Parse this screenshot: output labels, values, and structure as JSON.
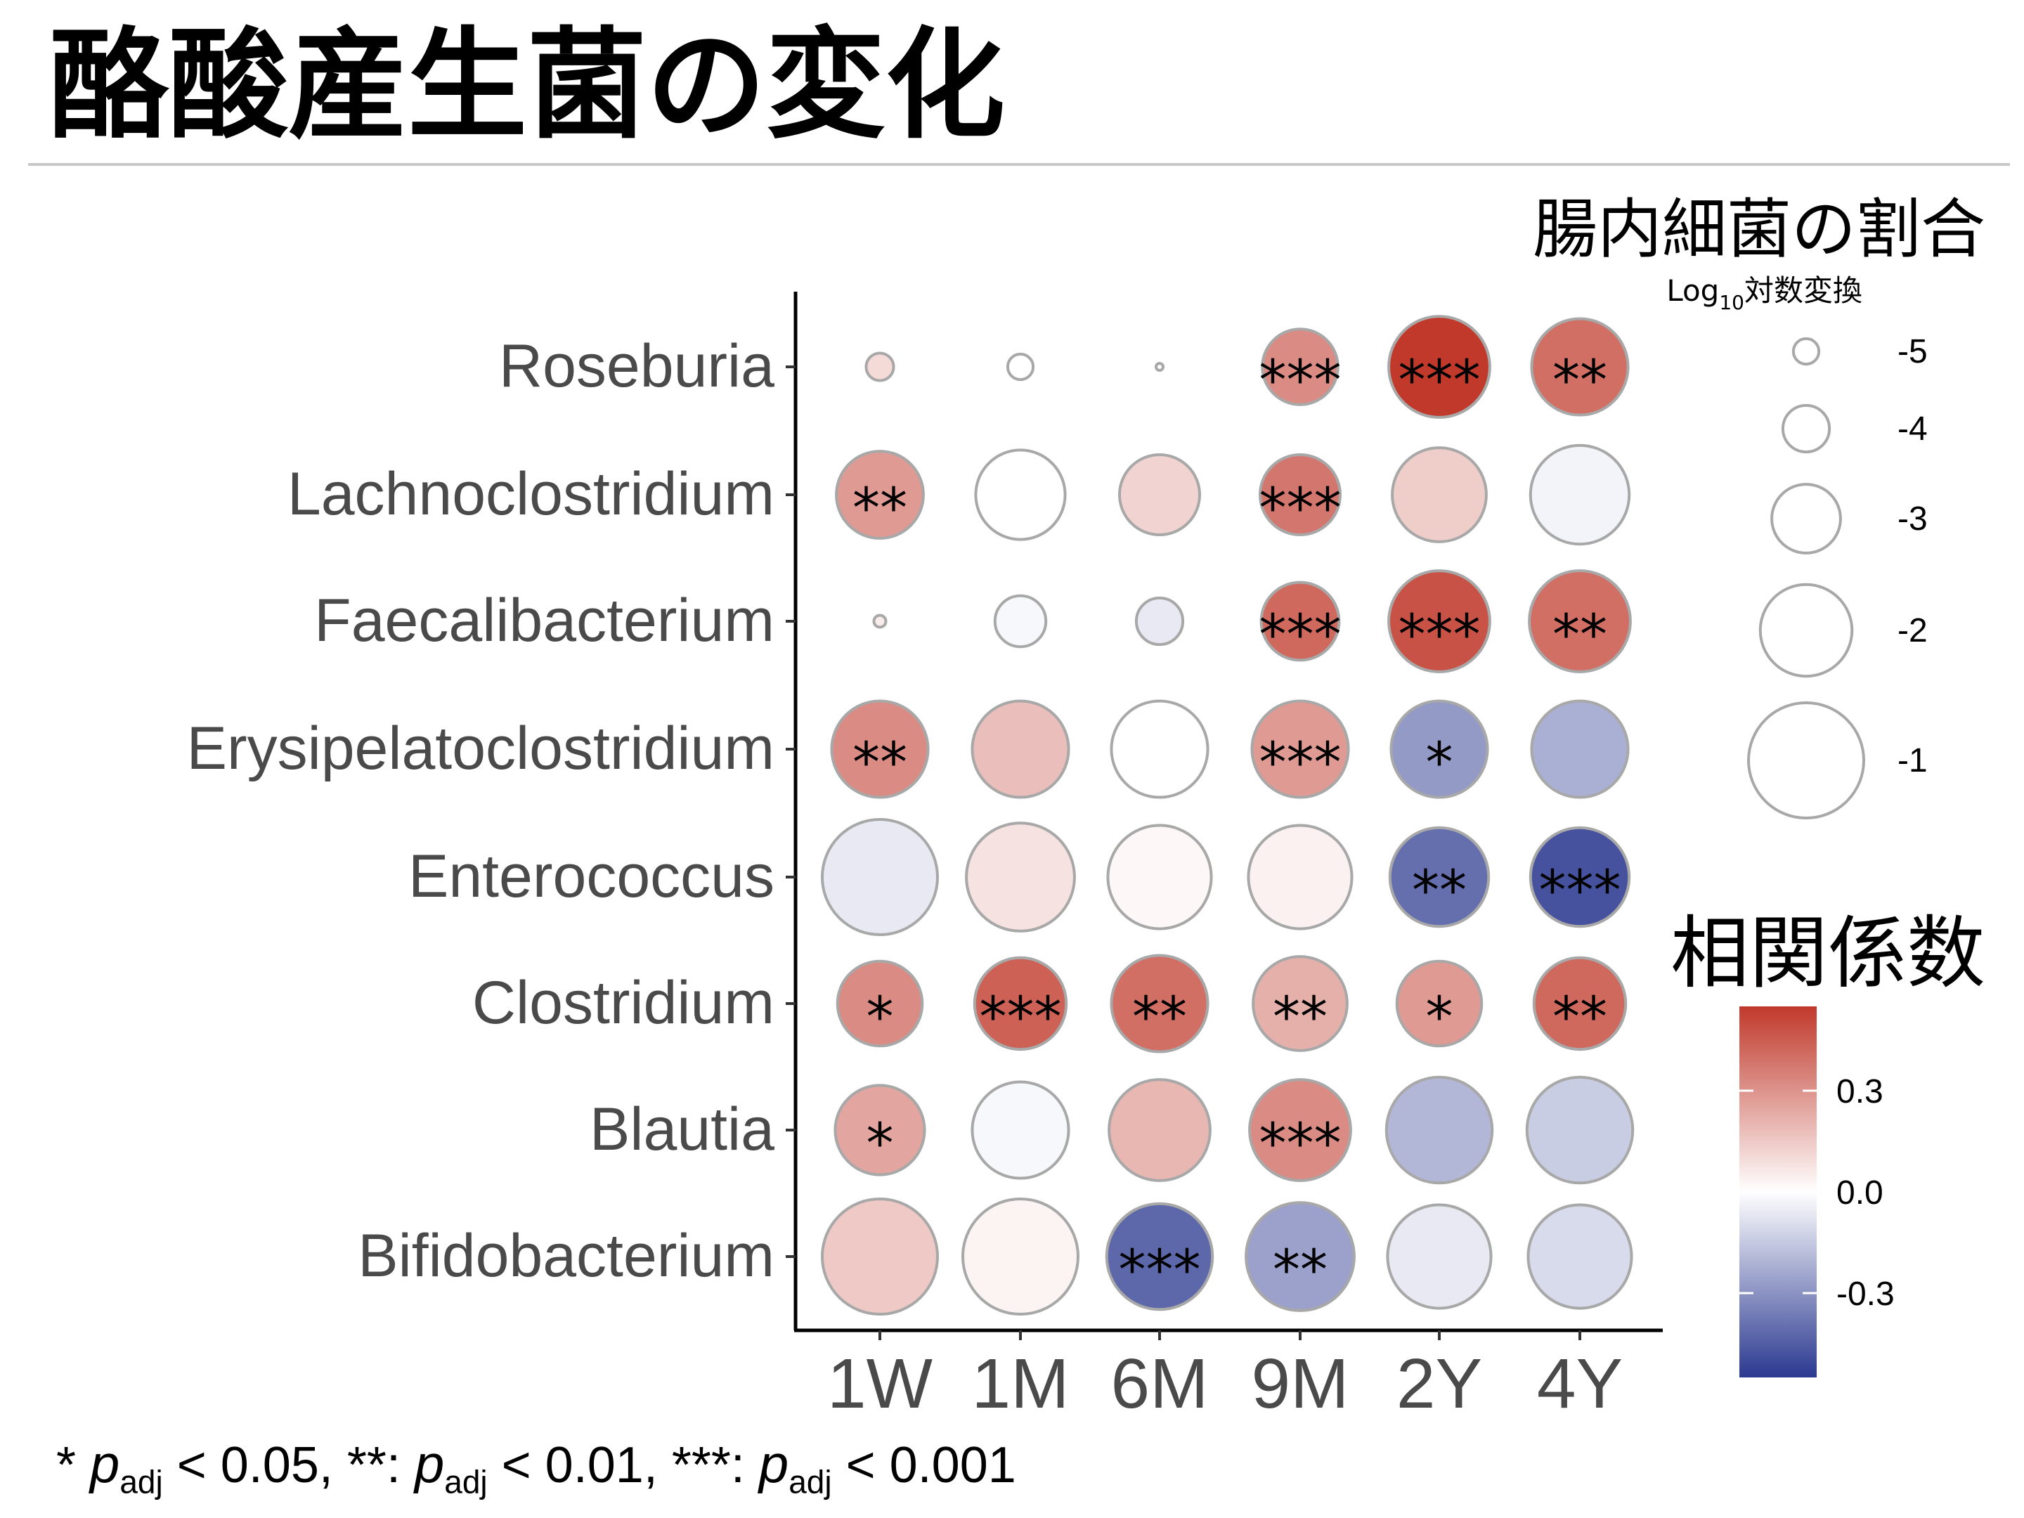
{
  "slide": {
    "title": "酪酸産生菌の変化"
  },
  "footnote": {
    "sig1": "* ",
    "p_symbol": "p",
    "p_sub": "adj",
    "t1": " < 0.05, ",
    "sig2": "**: ",
    "t2": " < 0.01, ",
    "sig3": "***: ",
    "t3": " < 0.001"
  },
  "chart_data": {
    "type": "bubble-heatmap",
    "x_categories": [
      "1W",
      "1M",
      "6M",
      "9M",
      "2Y",
      "4Y"
    ],
    "y_categories": [
      "Roseburia",
      "Lachnoclostridium",
      "Faecalibacterium",
      "Erysipelatoclostridium",
      "Enterococcus",
      "Clostridium",
      "Blautia",
      "Bifidobacterium"
    ],
    "size_legend": {
      "title": "腸内細菌の割合",
      "subtitle_pre": "Log",
      "subtitle_sub": "10",
      "subtitle_post": "対数変換",
      "values": [
        -5,
        -4,
        -3,
        -2,
        -1
      ],
      "labels": [
        "-5",
        "-4",
        "-3",
        "-2",
        "-1"
      ]
    },
    "color_legend": {
      "title": "相関係数",
      "range": [
        -0.55,
        0.55
      ],
      "ticks": [
        0.3,
        0.0,
        -0.3
      ],
      "tick_labels": [
        "0.3",
        "0.0",
        "-0.3"
      ],
      "low_color": "#2b3990",
      "mid_color": "#ffffff",
      "high_color": "#c0392b"
    },
    "cells": [
      {
        "row": "Roseburia",
        "col": "1W",
        "size": -4.9,
        "corr": 0.1,
        "sig": ""
      },
      {
        "row": "Roseburia",
        "col": "1M",
        "size": -5.0,
        "corr": 0.0,
        "sig": ""
      },
      {
        "row": "Roseburia",
        "col": "6M",
        "size": -6.0,
        "corr": 0.0,
        "sig": ""
      },
      {
        "row": "Roseburia",
        "col": "9M",
        "size": -2.7,
        "corr": 0.32,
        "sig": "***"
      },
      {
        "row": "Roseburia",
        "col": "2Y",
        "size": -1.6,
        "corr": 0.55,
        "sig": "***"
      },
      {
        "row": "Roseburia",
        "col": "4Y",
        "size": -1.8,
        "corr": 0.4,
        "sig": "**"
      },
      {
        "row": "Lachnoclostridium",
        "col": "1W",
        "size": -2.2,
        "corr": 0.28,
        "sig": "**"
      },
      {
        "row": "Lachnoclostridium",
        "col": "1M",
        "size": -2.1,
        "corr": 0.0,
        "sig": ""
      },
      {
        "row": "Lachnoclostridium",
        "col": "6M",
        "size": -2.5,
        "corr": 0.12,
        "sig": ""
      },
      {
        "row": "Lachnoclostridium",
        "col": "9M",
        "size": -2.5,
        "corr": 0.38,
        "sig": "***"
      },
      {
        "row": "Lachnoclostridium",
        "col": "2Y",
        "size": -1.9,
        "corr": 0.14,
        "sig": ""
      },
      {
        "row": "Lachnoclostridium",
        "col": "4Y",
        "size": -1.7,
        "corr": -0.03,
        "sig": ""
      },
      {
        "row": "Faecalibacterium",
        "col": "1W",
        "size": -5.7,
        "corr": 0.05,
        "sig": ""
      },
      {
        "row": "Faecalibacterium",
        "col": "1M",
        "size": -3.8,
        "corr": -0.02,
        "sig": ""
      },
      {
        "row": "Faecalibacterium",
        "col": "6M",
        "size": -4.0,
        "corr": -0.06,
        "sig": ""
      },
      {
        "row": "Faecalibacterium",
        "col": "9M",
        "size": -2.6,
        "corr": 0.42,
        "sig": "***"
      },
      {
        "row": "Faecalibacterium",
        "col": "2Y",
        "size": -1.6,
        "corr": 0.48,
        "sig": "***"
      },
      {
        "row": "Faecalibacterium",
        "col": "4Y",
        "size": -1.6,
        "corr": 0.4,
        "sig": "**"
      },
      {
        "row": "Erysipelatoclostridium",
        "col": "1W",
        "size": -1.8,
        "corr": 0.32,
        "sig": "**"
      },
      {
        "row": "Erysipelatoclostridium",
        "col": "1M",
        "size": -1.8,
        "corr": 0.18,
        "sig": ""
      },
      {
        "row": "Erysipelatoclostridium",
        "col": "6M",
        "size": -1.8,
        "corr": 0.0,
        "sig": ""
      },
      {
        "row": "Erysipelatoclostridium",
        "col": "9M",
        "size": -1.8,
        "corr": 0.28,
        "sig": "***"
      },
      {
        "row": "Erysipelatoclostridium",
        "col": "2Y",
        "size": -1.8,
        "corr": -0.28,
        "sig": "*"
      },
      {
        "row": "Erysipelatoclostridium",
        "col": "4Y",
        "size": -1.8,
        "corr": -0.22,
        "sig": ""
      },
      {
        "row": "Enterococcus",
        "col": "1W",
        "size": -1.0,
        "corr": -0.06,
        "sig": ""
      },
      {
        "row": "Enterococcus",
        "col": "1M",
        "size": -1.3,
        "corr": 0.08,
        "sig": ""
      },
      {
        "row": "Enterococcus",
        "col": "6M",
        "size": -1.5,
        "corr": 0.02,
        "sig": ""
      },
      {
        "row": "Enterococcus",
        "col": "9M",
        "size": -1.5,
        "corr": 0.04,
        "sig": ""
      },
      {
        "row": "Enterococcus",
        "col": "2Y",
        "size": -1.7,
        "corr": -0.4,
        "sig": "**"
      },
      {
        "row": "Enterococcus",
        "col": "4Y",
        "size": -1.7,
        "corr": -0.48,
        "sig": "***"
      },
      {
        "row": "Clostridium",
        "col": "1W",
        "size": -2.3,
        "corr": 0.32,
        "sig": "*"
      },
      {
        "row": "Clostridium",
        "col": "1M",
        "size": -2.0,
        "corr": 0.44,
        "sig": "***"
      },
      {
        "row": "Clostridium",
        "col": "6M",
        "size": -1.8,
        "corr": 0.4,
        "sig": "**"
      },
      {
        "row": "Clostridium",
        "col": "9M",
        "size": -1.9,
        "corr": 0.22,
        "sig": "**"
      },
      {
        "row": "Clostridium",
        "col": "2Y",
        "size": -2.3,
        "corr": 0.28,
        "sig": "*"
      },
      {
        "row": "Clostridium",
        "col": "4Y",
        "size": -2.0,
        "corr": 0.42,
        "sig": "**"
      },
      {
        "row": "Blautia",
        "col": "1W",
        "size": -2.1,
        "corr": 0.25,
        "sig": "*"
      },
      {
        "row": "Blautia",
        "col": "1M",
        "size": -1.8,
        "corr": -0.02,
        "sig": ""
      },
      {
        "row": "Blautia",
        "col": "6M",
        "size": -1.6,
        "corr": 0.2,
        "sig": ""
      },
      {
        "row": "Blautia",
        "col": "9M",
        "size": -1.6,
        "corr": 0.32,
        "sig": "***"
      },
      {
        "row": "Blautia",
        "col": "2Y",
        "size": -1.4,
        "corr": -0.2,
        "sig": ""
      },
      {
        "row": "Blautia",
        "col": "4Y",
        "size": -1.4,
        "corr": -0.14,
        "sig": ""
      },
      {
        "row": "Bifidobacterium",
        "col": "1W",
        "size": -1.0,
        "corr": 0.15,
        "sig": ""
      },
      {
        "row": "Bifidobacterium",
        "col": "1M",
        "size": -1.0,
        "corr": 0.03,
        "sig": ""
      },
      {
        "row": "Bifidobacterium",
        "col": "6M",
        "size": -1.4,
        "corr": -0.42,
        "sig": "***"
      },
      {
        "row": "Bifidobacterium",
        "col": "9M",
        "size": -1.3,
        "corr": -0.26,
        "sig": "**"
      },
      {
        "row": "Bifidobacterium",
        "col": "2Y",
        "size": -1.5,
        "corr": -0.06,
        "sig": ""
      },
      {
        "row": "Bifidobacterium",
        "col": "4Y",
        "size": -1.5,
        "corr": -0.1,
        "sig": ""
      }
    ]
  }
}
